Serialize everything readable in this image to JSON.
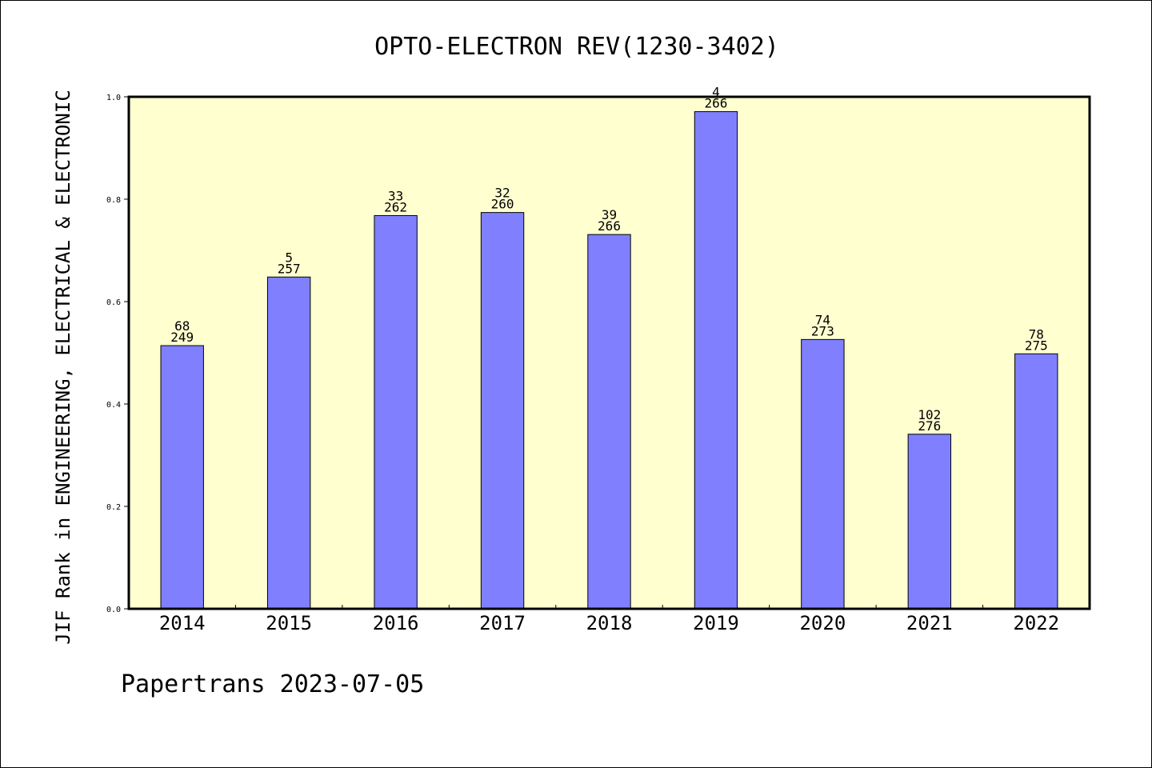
{
  "chart_data": {
    "type": "bar",
    "title": "OPTO-ELECTRON REV(1230-3402)",
    "ylabel": "JIF Rank in ENGINEERING, ELECTRICAL & ELECTRONIC",
    "xlabel": "",
    "ylim": [
      0,
      1.0
    ],
    "yticks": [
      "0.0",
      "0.2",
      "0.4",
      "0.6",
      "0.8",
      "1.0"
    ],
    "categories": [
      "2014",
      "2015",
      "2016",
      "2017",
      "2018",
      "2019",
      "2020",
      "2021",
      "2022"
    ],
    "values": [
      0.514,
      0.648,
      0.768,
      0.774,
      0.731,
      0.971,
      0.526,
      0.341,
      0.498
    ],
    "rank": [
      "68",
      "5",
      "33",
      "32",
      "39",
      "4",
      "74",
      "102",
      "78"
    ],
    "total": [
      "249",
      "257",
      "262",
      "260",
      "266",
      "266",
      "273",
      "276",
      "275"
    ],
    "grid": false,
    "colors": {
      "bar": "#8080ff",
      "plot_background": "#ffffd0"
    }
  },
  "footer": "Papertrans 2023-07-05"
}
